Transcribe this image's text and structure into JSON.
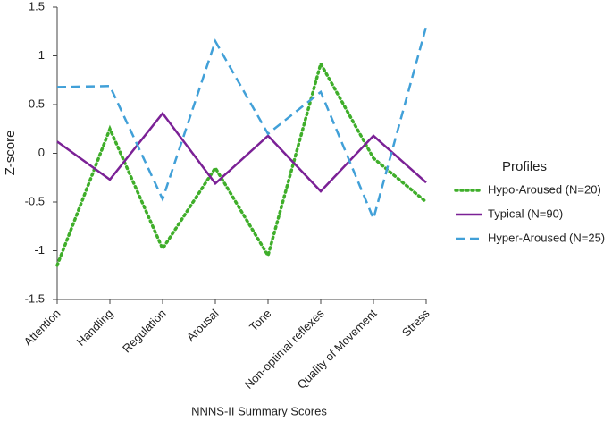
{
  "chart_data": {
    "type": "line",
    "x_label": "NNNS-II Summary Scores",
    "y_label": "Z-score",
    "legend_title": "Profiles",
    "legend_position": "right",
    "categories": [
      "Attention",
      "Handling",
      "Regulation",
      "Arousal",
      "Tone",
      "Non-optimal reflexes",
      "Quality of Movement",
      "Stress"
    ],
    "series": [
      {
        "name": "Hypo-Aroused (N=20)",
        "color": "#3fae2a",
        "dash": "dotted",
        "values": [
          -1.15,
          0.25,
          -0.98,
          -0.15,
          -1.05,
          0.92,
          -0.05,
          -0.5
        ]
      },
      {
        "name": "Typical (N=90)",
        "color": "#7b2196",
        "dash": "solid",
        "values": [
          0.12,
          -0.27,
          0.41,
          -0.31,
          0.18,
          -0.39,
          0.18,
          -0.3
        ]
      },
      {
        "name": "Hyper-Aroused (N=25)",
        "color": "#41a0d8",
        "dash": "dashed",
        "values": [
          0.68,
          0.69,
          -0.47,
          1.15,
          0.2,
          0.63,
          -0.67,
          1.3
        ]
      }
    ],
    "ylim": [
      -1.5,
      1.5
    ],
    "yticks": [
      1.5,
      1,
      0.5,
      0,
      -0.5,
      -1,
      -1.5
    ]
  }
}
